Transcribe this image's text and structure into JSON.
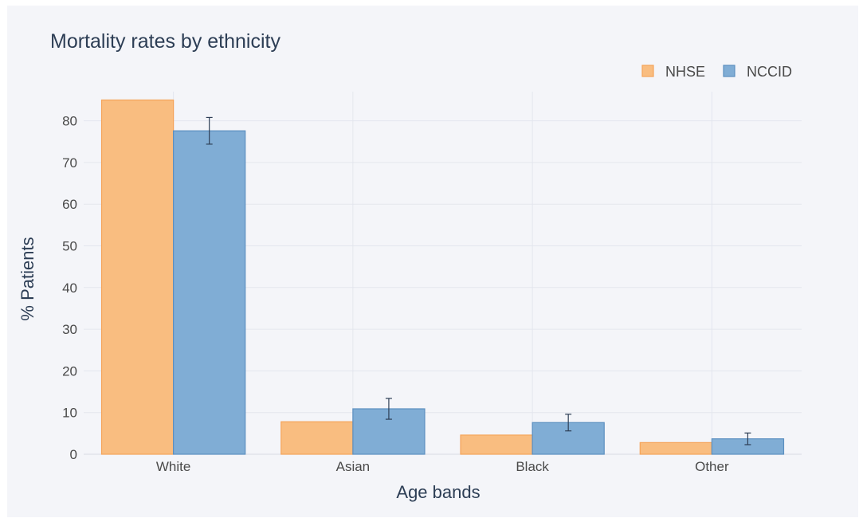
{
  "chart_data": {
    "type": "bar",
    "title": "Mortality rates by ethnicity",
    "xlabel": "Age bands",
    "ylabel": "% Patients",
    "categories": [
      "White",
      "Asian",
      "Black",
      "Other"
    ],
    "ylim": [
      0,
      87
    ],
    "yticks": [
      0,
      10,
      20,
      30,
      40,
      50,
      60,
      70,
      80
    ],
    "grid": true,
    "legend_position": "top-right",
    "series": [
      {
        "name": "NHSE",
        "values": [
          85,
          7.8,
          4.6,
          2.8
        ],
        "color": "#f9bd80",
        "edge_color": "#f5a45a"
      },
      {
        "name": "NCCID",
        "values": [
          77.6,
          10.9,
          7.6,
          3.7
        ],
        "errors": [
          3.2,
          2.5,
          2.0,
          1.4
        ],
        "color": "#80add5",
        "edge_color": "#5b8fc0"
      }
    ]
  }
}
